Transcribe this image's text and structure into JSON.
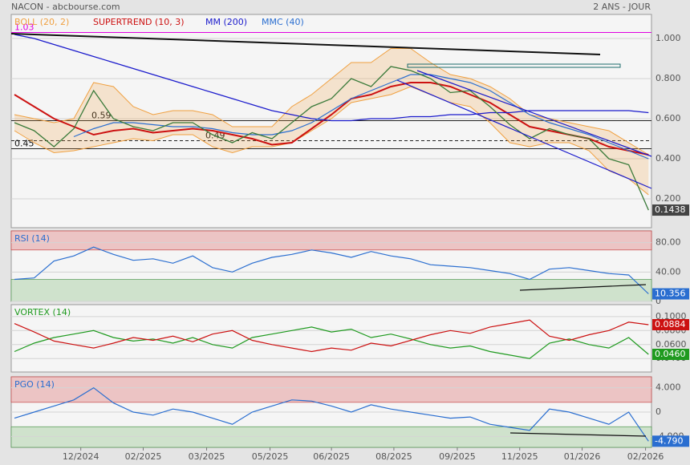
{
  "header": {
    "source": "NACON - abcbourse.com",
    "period": "2 ANS - JOUR"
  },
  "x_axis": {
    "xlim": [
      -0.16,
      32.15
    ],
    "xticks": [
      {
        "value": 3.35,
        "label": "12/2024"
      },
      {
        "value": 6.5,
        "label": "02/2025"
      },
      {
        "value": 9.7,
        "label": "03/2025"
      },
      {
        "value": 12.9,
        "label": "05/2025"
      },
      {
        "value": 16.0,
        "label": "06/2025"
      },
      {
        "value": 19.15,
        "label": "08/2025"
      },
      {
        "value": 22.35,
        "label": "09/2025"
      },
      {
        "value": 25.5,
        "label": "11/2025"
      },
      {
        "value": 28.65,
        "label": "01/2026"
      },
      {
        "value": 31.85,
        "label": "02/2026"
      }
    ]
  },
  "chart_data": [
    {
      "type": "line",
      "ylim": [
        0.056,
        1.12
      ],
      "yticks": [
        {
          "value": 1.0,
          "label": "1.000"
        },
        {
          "value": 0.8,
          "label": "0.800"
        },
        {
          "value": 0.6,
          "label": "0.600"
        },
        {
          "value": 0.4,
          "label": "0.400"
        },
        {
          "value": 0.2,
          "label": "0.200"
        }
      ],
      "grid": true,
      "levels": [
        {
          "value": 1.03,
          "color": "#e000e0",
          "style": "solid"
        },
        {
          "value": 0.59,
          "color": "#222222",
          "style": "solid"
        },
        {
          "value": 0.45,
          "color": "#222222",
          "style": "solid"
        },
        {
          "value": 0.49,
          "color": "#222222",
          "style": "dashed"
        }
      ],
      "price": {
        "color": "#3a7a3a",
        "last_label": "0.1438",
        "label_color": "#444444",
        "values": [
          0.58,
          0.54,
          0.46,
          0.55,
          0.74,
          0.6,
          0.56,
          0.54,
          0.58,
          0.58,
          0.52,
          0.48,
          0.53,
          0.5,
          0.58,
          0.66,
          0.7,
          0.8,
          0.76,
          0.86,
          0.84,
          0.8,
          0.73,
          0.74,
          0.66,
          0.57,
          0.5,
          0.55,
          0.52,
          0.5,
          0.4,
          0.37,
          0.1438
        ]
      },
      "series": [
        {
          "name": "BOLL (20, 2)",
          "color": "#f0a040",
          "kind": "band",
          "upper": [
            0.62,
            0.6,
            0.58,
            0.6,
            0.78,
            0.76,
            0.66,
            0.62,
            0.64,
            0.64,
            0.62,
            0.56,
            0.56,
            0.56,
            0.66,
            0.72,
            0.8,
            0.88,
            0.88,
            0.95,
            0.95,
            0.88,
            0.82,
            0.8,
            0.76,
            0.7,
            0.62,
            0.6,
            0.58,
            0.56,
            0.54,
            0.48,
            0.42
          ],
          "lower": [
            0.54,
            0.48,
            0.43,
            0.44,
            0.46,
            0.48,
            0.5,
            0.49,
            0.52,
            0.52,
            0.46,
            0.43,
            0.46,
            0.46,
            0.48,
            0.54,
            0.6,
            0.68,
            0.7,
            0.72,
            0.76,
            0.72,
            0.68,
            0.66,
            0.58,
            0.48,
            0.46,
            0.48,
            0.48,
            0.44,
            0.34,
            0.3,
            0.22
          ]
        },
        {
          "name": "SUPERTREND (10, 3)",
          "color": "#cc1111",
          "values": [
            0.72,
            0.66,
            0.6,
            0.56,
            0.52,
            0.54,
            0.55,
            0.53,
            0.54,
            0.55,
            0.54,
            0.52,
            0.5,
            0.47,
            0.48,
            0.55,
            0.62,
            0.7,
            0.72,
            0.76,
            0.78,
            0.78,
            0.76,
            0.72,
            0.68,
            0.62,
            0.56,
            0.54,
            0.52,
            0.5,
            0.46,
            0.44,
            0.42
          ]
        },
        {
          "name": "MM (200)",
          "color": "#1a1acc",
          "values": [
            1.02,
            1.0,
            0.97,
            0.94,
            0.91,
            0.88,
            0.85,
            0.82,
            0.79,
            0.76,
            0.73,
            0.7,
            0.67,
            0.64,
            0.62,
            0.6,
            0.59,
            0.59,
            0.6,
            0.6,
            0.61,
            0.61,
            0.62,
            0.62,
            0.63,
            0.63,
            0.64,
            0.64,
            0.64,
            0.64,
            0.64,
            0.64,
            0.63
          ]
        },
        {
          "name": "MMC (40)",
          "color": "#2a6ed0",
          "values": [
            null,
            null,
            null,
            0.51,
            0.55,
            0.58,
            0.58,
            0.57,
            0.56,
            0.56,
            0.55,
            0.53,
            0.52,
            0.52,
            0.54,
            0.58,
            0.64,
            0.7,
            0.74,
            0.78,
            0.82,
            0.82,
            0.8,
            0.78,
            0.74,
            0.68,
            0.62,
            0.58,
            0.55,
            0.52,
            0.48,
            0.44,
            0.4
          ]
        }
      ]
    },
    {
      "type": "line",
      "ylim": [
        0,
        96
      ],
      "yticks": [
        {
          "value": 80,
          "label": "80.00"
        },
        {
          "value": 40,
          "label": "40.00"
        },
        0
      ],
      "grid": true,
      "bands": [
        30,
        70
      ],
      "series": [
        {
          "name": "RSI (14)",
          "color": "#2a6ed0",
          "last_label": "10.356",
          "values": [
            30,
            32,
            55,
            62,
            74,
            64,
            56,
            58,
            52,
            62,
            46,
            40,
            52,
            60,
            64,
            70,
            66,
            60,
            68,
            62,
            58,
            50,
            48,
            46,
            42,
            38,
            30,
            44,
            46,
            42,
            38,
            36,
            10.356
          ]
        }
      ]
    },
    {
      "type": "line",
      "ylim": [
        0.0208,
        0.117
      ],
      "yticks": [
        {
          "value": 0.04,
          "label": "0.0400"
        },
        {
          "value": 0.06,
          "label": "0.0600"
        },
        {
          "value": 0.08,
          "label": "0.0800"
        },
        {
          "value": 0.1,
          "label": "0.1000"
        }
      ],
      "grid": true,
      "series": [
        {
          "name": "VORTEX (14)",
          "color": "#1f9a1f",
          "last_label": "0.0460",
          "values": [
            0.05,
            0.062,
            0.07,
            0.075,
            0.08,
            0.07,
            0.065,
            0.068,
            0.062,
            0.07,
            0.06,
            0.055,
            0.07,
            0.075,
            0.08,
            0.085,
            0.078,
            0.082,
            0.07,
            0.075,
            0.068,
            0.06,
            0.055,
            0.058,
            0.05,
            0.045,
            0.04,
            0.062,
            0.068,
            0.06,
            0.055,
            0.07,
            0.046
          ]
        },
        {
          "color": "#cc1111",
          "last_label": "0.0884",
          "values": [
            0.09,
            0.078,
            0.065,
            0.06,
            0.055,
            0.062,
            0.07,
            0.066,
            0.072,
            0.064,
            0.075,
            0.08,
            0.066,
            0.06,
            0.055,
            0.05,
            0.055,
            0.052,
            0.062,
            0.058,
            0.066,
            0.074,
            0.08,
            0.076,
            0.085,
            0.09,
            0.095,
            0.072,
            0.066,
            0.074,
            0.08,
            0.092,
            0.0884
          ]
        }
      ]
    },
    {
      "type": "line",
      "ylim": [
        -5.8,
        5.8
      ],
      "yticks": [
        {
          "value": 4,
          "label": "4.000"
        },
        0,
        {
          "value": -4,
          "label": "-4.000"
        }
      ],
      "grid": true,
      "bands": [
        -2.4,
        1.6
      ],
      "series": [
        {
          "name": "PGO (14)",
          "color": "#2a6ed0",
          "last_label": "-4.790",
          "values": [
            -1,
            0,
            1,
            2,
            4,
            1.5,
            0,
            -0.5,
            0.5,
            0,
            -1,
            -2,
            0,
            1,
            2,
            1.8,
            1,
            0,
            1.2,
            0.5,
            0,
            -0.5,
            -1,
            -0.8,
            -2,
            -2.5,
            -3,
            0.5,
            0,
            -1,
            -2,
            0,
            -4.79
          ]
        }
      ]
    }
  ]
}
